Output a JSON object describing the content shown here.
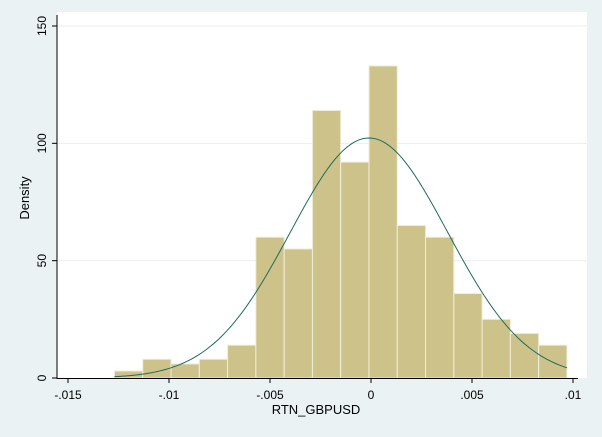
{
  "chart_data": {
    "type": "bar",
    "title": "",
    "xlabel": "RTN_GBPUSD",
    "ylabel": "Density",
    "xlim": [
      -0.015,
      0.01
    ],
    "ylim": [
      0,
      150
    ],
    "x_ticks": [
      -0.015,
      -0.01,
      -0.005,
      0,
      0.005,
      0.01
    ],
    "x_tick_labels": [
      "-.015",
      "-.01",
      "-.005",
      "0",
      ".005",
      ".01"
    ],
    "y_ticks": [
      0,
      50,
      100,
      150
    ],
    "y_tick_labels": [
      "0",
      "50",
      "100",
      "150"
    ],
    "grid": "horizontal",
    "bins": [
      {
        "x0": -0.0127,
        "x1": -0.0113,
        "density": 3
      },
      {
        "x0": -0.0113,
        "x1": -0.0099,
        "density": 8
      },
      {
        "x0": -0.0099,
        "x1": -0.0085,
        "density": 6
      },
      {
        "x0": -0.0085,
        "x1": -0.0071,
        "density": 8
      },
      {
        "x0": -0.0071,
        "x1": -0.0057,
        "density": 14
      },
      {
        "x0": -0.0057,
        "x1": -0.0043,
        "density": 60
      },
      {
        "x0": -0.0043,
        "x1": -0.0029,
        "density": 55
      },
      {
        "x0": -0.0029,
        "x1": -0.0015,
        "density": 114
      },
      {
        "x0": -0.0015,
        "x1": -0.0001,
        "density": 92
      },
      {
        "x0": -0.0001,
        "x1": 0.0013,
        "density": 133
      },
      {
        "x0": 0.0013,
        "x1": 0.0027,
        "density": 65
      },
      {
        "x0": 0.0027,
        "x1": 0.0041,
        "density": 60
      },
      {
        "x0": 0.0041,
        "x1": 0.0055,
        "density": 36
      },
      {
        "x0": 0.0055,
        "x1": 0.0069,
        "density": 25
      },
      {
        "x0": 0.0069,
        "x1": 0.0083,
        "density": 19
      },
      {
        "x0": 0.0083,
        "x1": 0.0097,
        "density": 14
      }
    ],
    "normal_curve": {
      "mean": -0.0001,
      "sd": 0.0039
    },
    "colors": {
      "bar_fill": "#cdc28a",
      "bar_stroke": "#f0eeda",
      "curve": "#1f6b5c",
      "plot_bg": "#ffffff",
      "outer_bg": "#eaf2f3",
      "grid": "#e9eef0"
    }
  }
}
